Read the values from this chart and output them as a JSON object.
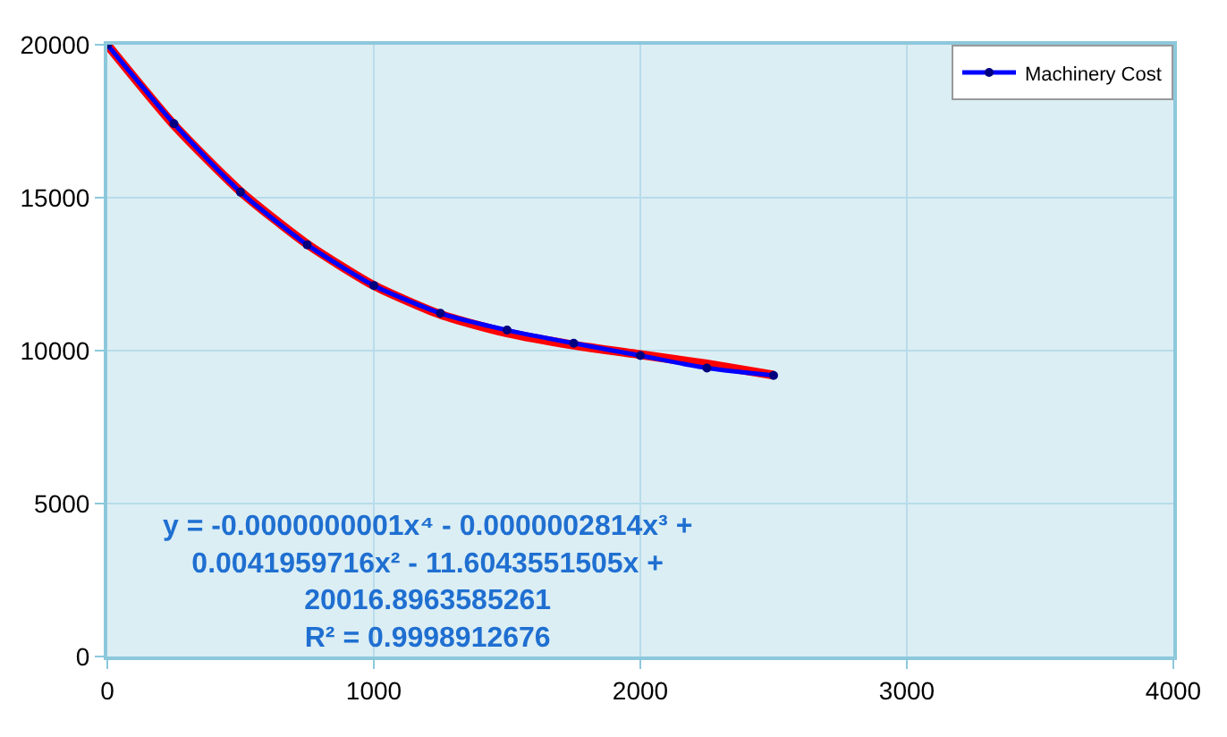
{
  "chart_data": {
    "type": "line",
    "x": [
      0,
      250,
      500,
      750,
      1000,
      1250,
      1500,
      1750,
      2000,
      2250,
      2500
    ],
    "series": [
      {
        "name": "Machinery Cost",
        "color": "#0000ff",
        "marker": "circle",
        "values": [
          20000,
          17420,
          15180,
          13460,
          12130,
          11220,
          10670,
          10240,
          9840,
          9430,
          9190
        ]
      },
      {
        "type": "line",
        "color": "#ff0000",
        "x": [
          0,
          250,
          500,
          750,
          1000,
          1250,
          1500,
          1750,
          2000,
          2250,
          2500
        ],
        "values": [
          20000,
          17380,
          15200,
          13480,
          12130,
          11180,
          10580,
          10180,
          9870,
          9560,
          9200
        ]
      }
    ],
    "xlim": [
      0,
      4000
    ],
    "xticks": [
      0,
      1000,
      2000,
      3000,
      4000
    ],
    "ylim": [
      0,
      20000
    ],
    "yticks": [
      0,
      5000,
      10000,
      15000,
      20000
    ],
    "grid": true,
    "legend": "top right",
    "annotations": [
      "y = -0.0000000001x⁴ - 0.0000002814x³ +\n0.0041959716x² - 11.6043551505x +\n20016.8963585261\nR² = 0.9998912676"
    ]
  }
}
